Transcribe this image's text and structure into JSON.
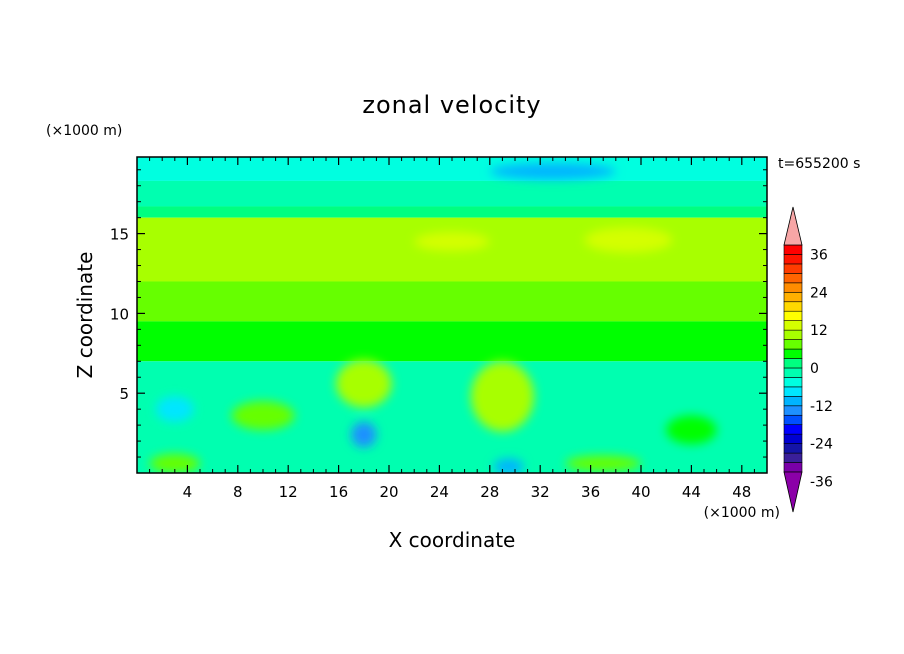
{
  "chart_data": {
    "type": "heatmap",
    "title": "zonal velocity",
    "xlabel": "X coordinate",
    "ylabel": "Z coordinate",
    "x_unit": "(×1000 m)",
    "z_unit": "(×1000 m)",
    "time_label": "t=655200 s",
    "xlim": [
      0,
      50
    ],
    "zlim": [
      0,
      19.8
    ],
    "x_ticks": [
      4,
      8,
      12,
      16,
      20,
      24,
      28,
      32,
      36,
      40,
      44,
      48
    ],
    "z_ticks": [
      5,
      10,
      15
    ],
    "colorbar": {
      "levels": [
        -42,
        -39,
        -36,
        -33,
        -30,
        -27,
        -24,
        -21,
        -18,
        -15,
        -12,
        -9,
        -6,
        -3,
        0,
        3,
        6,
        9,
        12,
        15,
        18,
        21,
        24,
        27,
        30,
        33,
        36,
        39,
        42
      ],
      "tick_labels": [
        "36",
        "24",
        "12",
        "0",
        "-12",
        "-24",
        "-36"
      ],
      "tick_values": [
        36,
        24,
        12,
        0,
        -12,
        -24,
        -36
      ],
      "colors": [
        "#7a00a8",
        "#3a1f9a",
        "#1414a8",
        "#0000d2",
        "#0000ff",
        "#0050ff",
        "#1e90ff",
        "#00b4ff",
        "#00e6ff",
        "#00ffe0",
        "#00ffb0",
        "#00ff80",
        "#00ff00",
        "#66ff00",
        "#a8ff00",
        "#d4ff00",
        "#ffff00",
        "#ffd800",
        "#ffb000",
        "#ff8c00",
        "#ff6400",
        "#ff3c00",
        "#ff1400",
        "#ff0000"
      ],
      "under_color": "#8b00a8",
      "over_color": "#f7a6a6"
    },
    "field_description_bands": [
      {
        "z_range": [
          18.3,
          19.8
        ],
        "value": -8
      },
      {
        "z_range": [
          16.7,
          18.3
        ],
        "value": -4
      },
      {
        "z_range": [
          16.0,
          16.7
        ],
        "value": -1
      },
      {
        "z_range": [
          12.0,
          16.0
        ],
        "value": 6
      },
      {
        "z_range": [
          9.5,
          12.0
        ],
        "value": 3
      },
      {
        "z_range": [
          7.0,
          9.5
        ],
        "value": 0
      },
      {
        "z_range": [
          0,
          7.0
        ],
        "value": -5
      }
    ],
    "field_features": [
      {
        "x": 39,
        "z": 14.6,
        "rx": 3.5,
        "rz": 0.8,
        "value": 10
      },
      {
        "x": 25,
        "z": 14.5,
        "rx": 3,
        "rz": 0.6,
        "value": 9
      },
      {
        "x": 33,
        "z": 18.9,
        "rx": 5,
        "rz": 0.5,
        "value": -14
      },
      {
        "x": 18,
        "z": 5.6,
        "rx": 2.2,
        "rz": 1.5,
        "value": 6
      },
      {
        "x": 10,
        "z": 3.6,
        "rx": 2.5,
        "rz": 0.9,
        "value": 3
      },
      {
        "x": 29,
        "z": 4.8,
        "rx": 2.5,
        "rz": 2.2,
        "value": 7
      },
      {
        "x": 44,
        "z": 2.7,
        "rx": 2,
        "rz": 0.9,
        "value": 2
      },
      {
        "x": 18,
        "z": 2.4,
        "rx": 1,
        "rz": 0.8,
        "value": -16
      },
      {
        "x": 3,
        "z": 4.0,
        "rx": 1.5,
        "rz": 0.8,
        "value": -10
      },
      {
        "x": 29.5,
        "z": 0.4,
        "rx": 1.2,
        "rz": 0.5,
        "value": -15
      },
      {
        "x": 3,
        "z": 0.6,
        "rx": 2,
        "rz": 0.6,
        "value": 3
      },
      {
        "x": 37,
        "z": 0.6,
        "rx": 3,
        "rz": 0.5,
        "value": 3
      }
    ]
  }
}
